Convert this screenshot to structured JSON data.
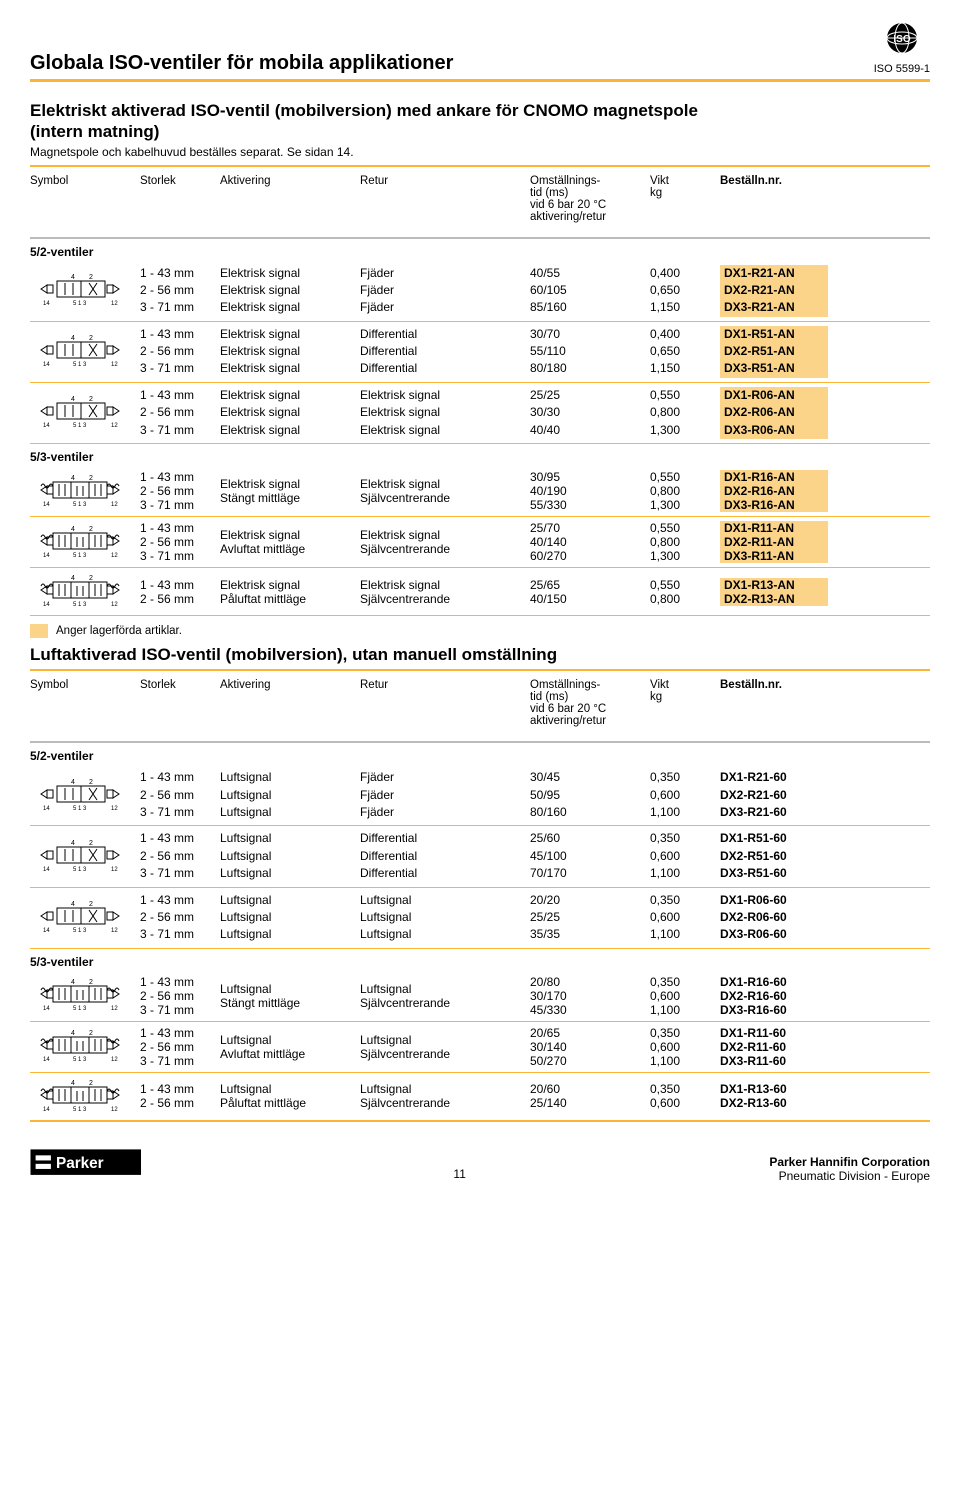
{
  "header": {
    "page_title": "Globala ISO-ventiler för mobila applikationer",
    "iso_std": "ISO 5599-1"
  },
  "colors": {
    "accent": "#fcb432",
    "highlight": "#fbd48a",
    "rule_gray": "#bbbbbb",
    "text": "#000000"
  },
  "section1": {
    "title_l1": "Elektriskt aktiverad ISO-ventil (mobilversion) med ankare för CNOMO magnetspole",
    "title_l2": "(intern matning)",
    "subtitle": "Magnetspole och kabelhuvud beställes separat. Se sidan 14.",
    "columns": {
      "symbol": "Symbol",
      "storlek": "Storlek",
      "aktivering": "Aktivering",
      "retur": "Retur",
      "om_l1": "Omställnings-",
      "om_l2": "tid (ms)",
      "om_l3": "vid 6 bar 20 °C",
      "om_l4": "aktivering/retur",
      "vikt_l1": "Vikt",
      "vikt_l2": "kg",
      "order": "Beställn.nr."
    },
    "sub52": "5/2-ventiler",
    "sub53": "5/3-ventiler",
    "groups52": [
      {
        "rows": [
          {
            "storlek": "1 - 43 mm",
            "aktiv": "Elektrisk signal",
            "retur": "Fjäder",
            "om": "40/55",
            "vikt": "0,400",
            "order": "DX1-R21-AN"
          },
          {
            "storlek": "2 - 56 mm",
            "aktiv": "Elektrisk signal",
            "retur": "Fjäder",
            "om": "60/105",
            "vikt": "0,650",
            "order": "DX2-R21-AN"
          },
          {
            "storlek": "3 - 71 mm",
            "aktiv": "Elektrisk signal",
            "retur": "Fjäder",
            "om": "85/160",
            "vikt": "1,150",
            "order": "DX3-R21-AN"
          }
        ]
      },
      {
        "rows": [
          {
            "storlek": "1 - 43 mm",
            "aktiv": "Elektrisk signal",
            "retur": "Differential",
            "om": "30/70",
            "vikt": "0,400",
            "order": "DX1-R51-AN"
          },
          {
            "storlek": "2 - 56 mm",
            "aktiv": "Elektrisk signal",
            "retur": "Differential",
            "om": "55/110",
            "vikt": "0,650",
            "order": "DX2-R51-AN"
          },
          {
            "storlek": "3 - 71 mm",
            "aktiv": "Elektrisk signal",
            "retur": "Differential",
            "om": "80/180",
            "vikt": "1,150",
            "order": "DX3-R51-AN"
          }
        ]
      },
      {
        "rows": [
          {
            "storlek": "1 - 43 mm",
            "aktiv": "Elektrisk signal",
            "retur": "Elektrisk signal",
            "om": "25/25",
            "vikt": "0,550",
            "order": "DX1-R06-AN"
          },
          {
            "storlek": "2 - 56 mm",
            "aktiv": "Elektrisk signal",
            "retur": "Elektrisk signal",
            "om": "30/30",
            "vikt": "0,800",
            "order": "DX2-R06-AN"
          },
          {
            "storlek": "3 - 71 mm",
            "aktiv": "Elektrisk signal",
            "retur": "Elektrisk signal",
            "om": "40/40",
            "vikt": "1,300",
            "order": "DX3-R06-AN"
          }
        ]
      }
    ],
    "groups53": [
      {
        "aktiv_lines": [
          "Elektrisk signal",
          "Stängt mittläge"
        ],
        "retur_lines": [
          "Elektrisk signal",
          "Självcentrerande"
        ],
        "rows": [
          {
            "storlek": "1 - 43 mm",
            "om": "30/95",
            "vikt": "0,550",
            "order": "DX1-R16-AN"
          },
          {
            "storlek": "2 - 56 mm",
            "om": "40/190",
            "vikt": "0,800",
            "order": "DX2-R16-AN"
          },
          {
            "storlek": "3 - 71 mm",
            "om": "55/330",
            "vikt": "1,300",
            "order": "DX3-R16-AN"
          }
        ]
      },
      {
        "aktiv_lines": [
          "Elektrisk signal",
          "Avluftat mittläge"
        ],
        "retur_lines": [
          "Elektrisk signal",
          "Självcentrerande"
        ],
        "rows": [
          {
            "storlek": "1 - 43 mm",
            "om": "25/70",
            "vikt": "0,550",
            "order": "DX1-R11-AN"
          },
          {
            "storlek": "2 - 56 mm",
            "om": "40/140",
            "vikt": "0,800",
            "order": "DX2-R11-AN"
          },
          {
            "storlek": "3 - 71 mm",
            "om": "60/270",
            "vikt": "1,300",
            "order": "DX3-R11-AN"
          }
        ]
      },
      {
        "aktiv_lines": [
          "Elektrisk signal",
          "Påluftat mittläge"
        ],
        "retur_lines": [
          "Elektrisk signal",
          "Självcentrerande"
        ],
        "rows": [
          {
            "storlek": "1 - 43 mm",
            "om": "25/65",
            "vikt": "0,550",
            "order": "DX1-R13-AN"
          },
          {
            "storlek": "2 - 56 mm",
            "om": "40/150",
            "vikt": "0,800",
            "order": "DX2-R13-AN"
          }
        ]
      }
    ],
    "legend": "Anger lagerförda artiklar.",
    "highlight_order": true
  },
  "section2": {
    "title": "Luftaktiverad ISO-ventil (mobilversion), utan manuell omställning",
    "columns": {
      "symbol": "Symbol",
      "storlek": "Storlek",
      "aktivering": "Aktivering",
      "retur": "Retur",
      "om_l1": "Omställnings-",
      "om_l2": "tid (ms)",
      "om_l3": "vid 6 bar 20 °C",
      "om_l4": "aktivering/retur",
      "vikt_l1": "Vikt",
      "vikt_l2": "kg",
      "order": "Beställn.nr."
    },
    "sub52": "5/2-ventiler",
    "sub53": "5/3-ventiler",
    "groups52": [
      {
        "rows": [
          {
            "storlek": "1 - 43 mm",
            "aktiv": "Luftsignal",
            "retur": "Fjäder",
            "om": "30/45",
            "vikt": "0,350",
            "order": "DX1-R21-60"
          },
          {
            "storlek": "2 - 56 mm",
            "aktiv": "Luftsignal",
            "retur": "Fjäder",
            "om": "50/95",
            "vikt": "0,600",
            "order": "DX2-R21-60"
          },
          {
            "storlek": "3 - 71 mm",
            "aktiv": "Luftsignal",
            "retur": "Fjäder",
            "om": "80/160",
            "vikt": "1,100",
            "order": "DX3-R21-60"
          }
        ]
      },
      {
        "rows": [
          {
            "storlek": "1 - 43 mm",
            "aktiv": "Luftsignal",
            "retur": "Differential",
            "om": "25/60",
            "vikt": "0,350",
            "order": "DX1-R51-60"
          },
          {
            "storlek": "2 - 56 mm",
            "aktiv": "Luftsignal",
            "retur": "Differential",
            "om": "45/100",
            "vikt": "0,600",
            "order": "DX2-R51-60"
          },
          {
            "storlek": "3 - 71 mm",
            "aktiv": "Luftsignal",
            "retur": "Differential",
            "om": "70/170",
            "vikt": "1,100",
            "order": "DX3-R51-60"
          }
        ]
      },
      {
        "rows": [
          {
            "storlek": "1 - 43 mm",
            "aktiv": "Luftsignal",
            "retur": "Luftsignal",
            "om": "20/20",
            "vikt": "0,350",
            "order": "DX1-R06-60"
          },
          {
            "storlek": "2 - 56 mm",
            "aktiv": "Luftsignal",
            "retur": "Luftsignal",
            "om": "25/25",
            "vikt": "0,600",
            "order": "DX2-R06-60"
          },
          {
            "storlek": "3 - 71 mm",
            "aktiv": "Luftsignal",
            "retur": "Luftsignal",
            "om": "35/35",
            "vikt": "1,100",
            "order": "DX3-R06-60"
          }
        ]
      }
    ],
    "groups53": [
      {
        "aktiv_lines": [
          "Luftsignal",
          "Stängt mittläge"
        ],
        "retur_lines": [
          "Luftsignal",
          "Självcentrerande"
        ],
        "rows": [
          {
            "storlek": "1 - 43 mm",
            "om": "20/80",
            "vikt": "0,350",
            "order": "DX1-R16-60"
          },
          {
            "storlek": "2 - 56 mm",
            "om": "30/170",
            "vikt": "0,600",
            "order": "DX2-R16-60"
          },
          {
            "storlek": "3 - 71 mm",
            "om": "45/330",
            "vikt": "1,100",
            "order": "DX3-R16-60"
          }
        ]
      },
      {
        "aktiv_lines": [
          "Luftsignal",
          "Avluftat mittläge"
        ],
        "retur_lines": [
          "Luftsignal",
          "Självcentrerande"
        ],
        "rows": [
          {
            "storlek": "1 - 43 mm",
            "om": "20/65",
            "vikt": "0,350",
            "order": "DX1-R11-60"
          },
          {
            "storlek": "2 - 56 mm",
            "om": "30/140",
            "vikt": "0,600",
            "order": "DX2-R11-60"
          },
          {
            "storlek": "3 - 71 mm",
            "om": "50/270",
            "vikt": "1,100",
            "order": "DX3-R11-60"
          }
        ]
      },
      {
        "aktiv_lines": [
          "Luftsignal",
          "Påluftat mittläge"
        ],
        "retur_lines": [
          "Luftsignal",
          "Självcentrerande"
        ],
        "rows": [
          {
            "storlek": "1 - 43 mm",
            "om": "20/60",
            "vikt": "0,350",
            "order": "DX1-R13-60"
          },
          {
            "storlek": "2 - 56 mm",
            "om": "25/140",
            "vikt": "0,600",
            "order": "DX2-R13-60"
          }
        ]
      }
    ],
    "highlight_order": false
  },
  "footer": {
    "page_number": "11",
    "corp": "Parker Hannifin Corporation",
    "div": "Pneumatic Division - Europe"
  },
  "symbol_ports": {
    "top": [
      "4",
      "2"
    ],
    "bottom_52": [
      "14",
      "5 1 3",
      "12"
    ],
    "bottom_53": [
      "14",
      "5 1 3",
      "12"
    ]
  }
}
